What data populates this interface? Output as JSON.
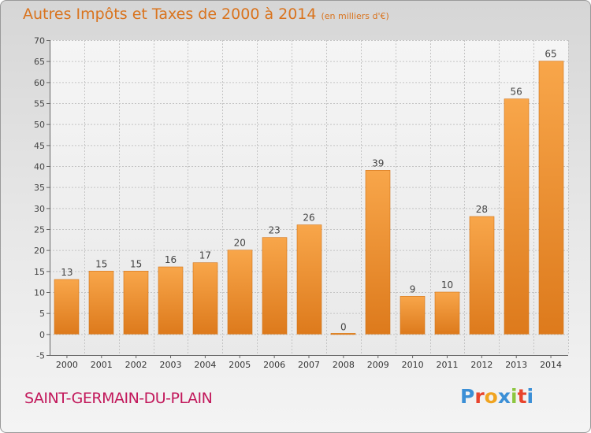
{
  "chart_data": {
    "type": "bar",
    "title": "Autres Impôts et Taxes de 2000 à 2014",
    "unit_note": "(en milliers d'€)",
    "categories": [
      "2000",
      "2001",
      "2002",
      "2003",
      "2004",
      "2005",
      "2006",
      "2007",
      "2008",
      "2009",
      "2010",
      "2011",
      "2012",
      "2013",
      "2014"
    ],
    "values": [
      13,
      15,
      15,
      16,
      17,
      20,
      23,
      26,
      0,
      39,
      9,
      10,
      28,
      56,
      65
    ],
    "value_labels": [
      "13",
      "15",
      "15",
      "16",
      "17",
      "20",
      "23",
      "26",
      "0",
      "39",
      "9",
      "10",
      "28",
      "56",
      "65"
    ],
    "ylim": [
      -5,
      70
    ],
    "yticks": [
      -5,
      0,
      5,
      10,
      15,
      20,
      25,
      30,
      35,
      40,
      45,
      50,
      55,
      60,
      65,
      70
    ],
    "ytick_labels": [
      "-5",
      "0",
      "5",
      "10",
      "15",
      "20",
      "25",
      "30",
      "35",
      "40",
      "45",
      "50",
      "55",
      "60",
      "65",
      "70"
    ],
    "xlabel": "",
    "ylabel": "",
    "grid": true,
    "bar_color": "#f08c2e"
  },
  "footer": {
    "city": "SAINT-GERMAIN-DU-PLAIN",
    "logo": "Proxiti",
    "logo_colors": [
      "#3b8fd6",
      "#e8442d",
      "#f0a420",
      "#3b8fd6",
      "#8cc63f",
      "#e8442d",
      "#3b8fd6"
    ]
  }
}
